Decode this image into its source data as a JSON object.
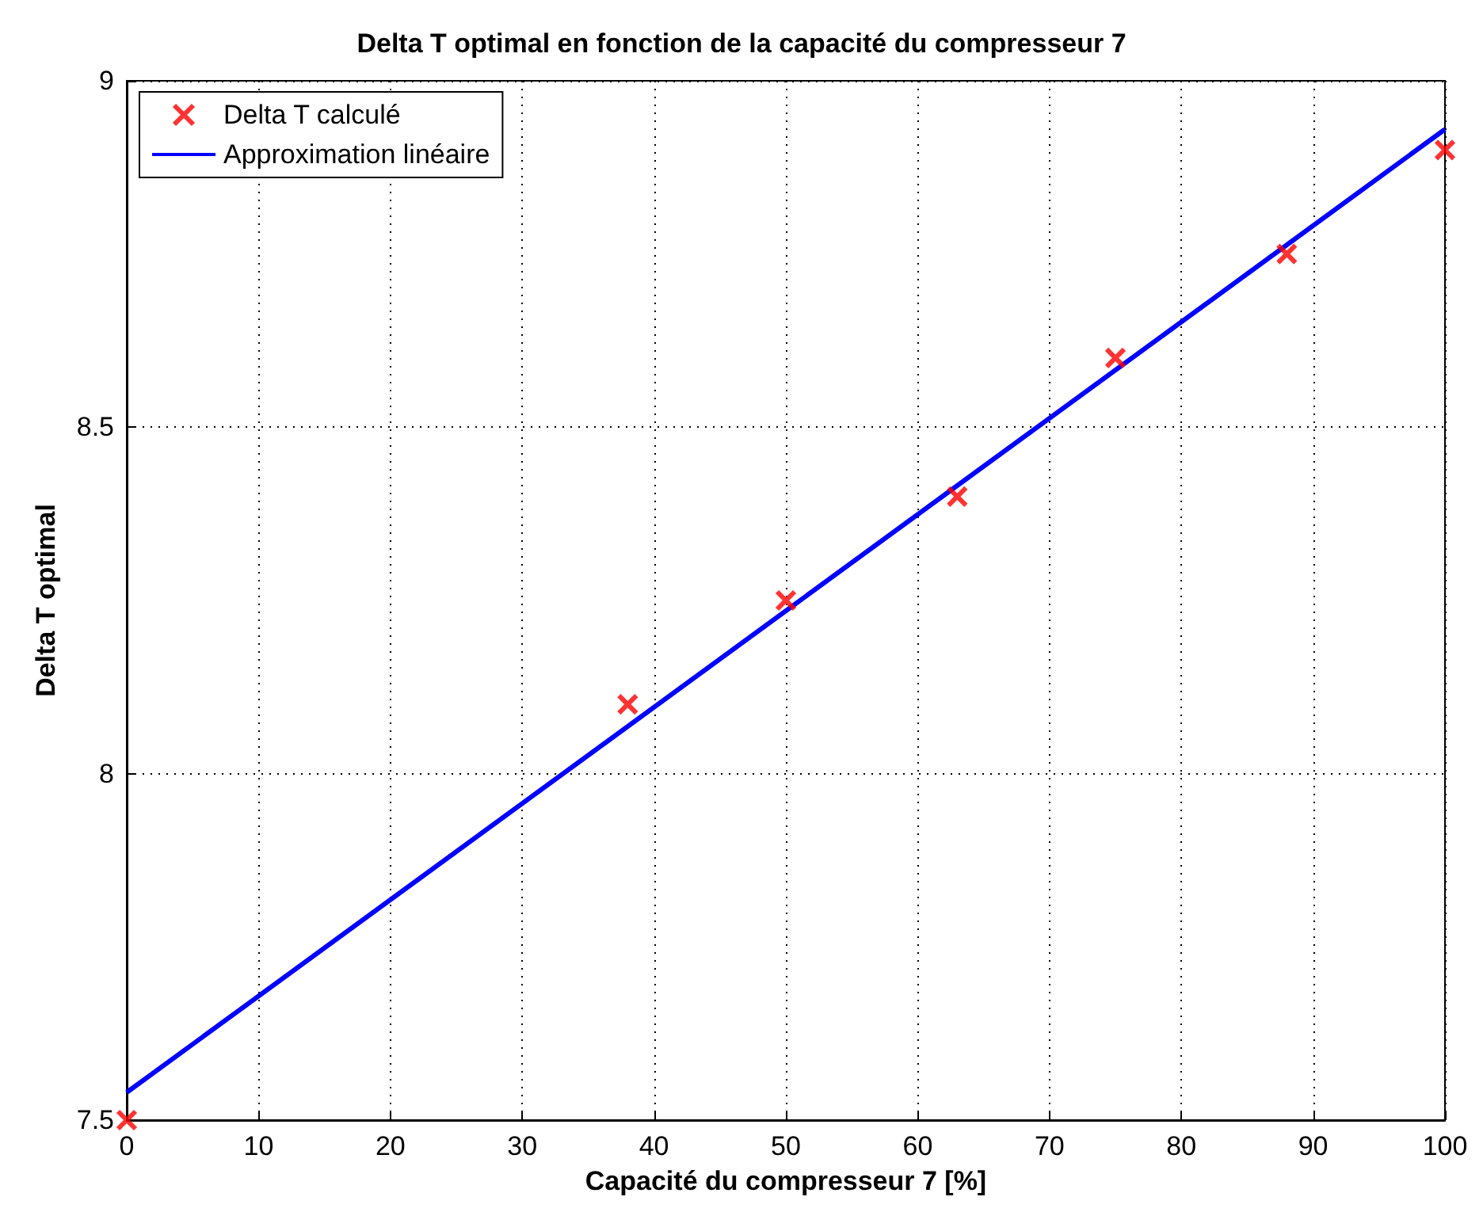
{
  "chart_data": {
    "type": "scatter",
    "title": "Delta T optimal en fonction de la capacité du compresseur 7",
    "xlabel": "Capacité du compresseur 7 [%]",
    "ylabel": "Delta T optimal",
    "series": [
      {
        "name": "Delta T calculé",
        "color": "#ff0000",
        "marker": "cross",
        "x": [
          0,
          38,
          50,
          63,
          75,
          88,
          100
        ],
        "values": [
          7.5,
          8.1,
          8.25,
          8.4,
          8.6,
          8.75,
          8.9
        ]
      },
      {
        "name": "Approximation linéaire",
        "type": "line",
        "color": "#0000ff",
        "marker": "none",
        "line_style": "solid",
        "x": [
          0,
          100
        ],
        "values": [
          7.54,
          8.93
        ]
      }
    ],
    "xlim": [
      0,
      100
    ],
    "xticks": [
      0,
      10,
      20,
      30,
      40,
      50,
      60,
      70,
      80,
      90,
      100
    ],
    "ylim": [
      7.5,
      9
    ],
    "yticks": [
      7.5,
      8,
      8.5,
      9
    ],
    "grid": true,
    "legend": "top left"
  }
}
